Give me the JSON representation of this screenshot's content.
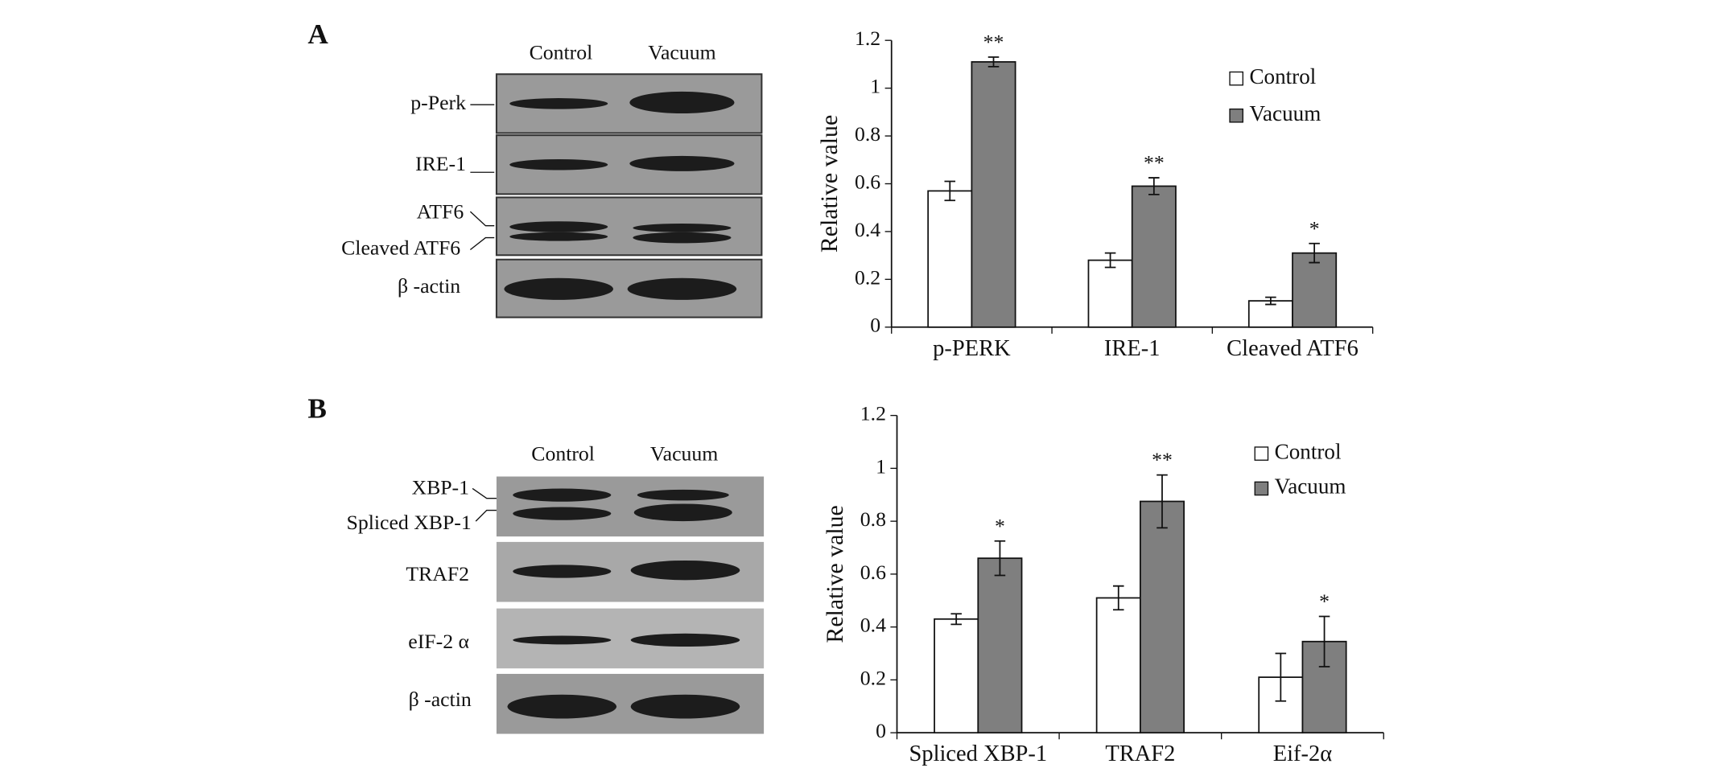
{
  "panel_labels": [
    "A",
    "B"
  ],
  "blots": [
    {
      "lanes": [
        "Control",
        "Vacuum"
      ],
      "bands": [
        "p-Perk",
        "IRE-1",
        "ATF6",
        "Cleaved ATF6",
        "β -actin"
      ]
    },
    {
      "lanes": [
        "Control",
        "Vacuum"
      ],
      "bands": [
        "XBP-1",
        "Spliced XBP-1",
        "TRAF2",
        "eIF-2 α",
        "β -actin"
      ]
    }
  ],
  "chart_data": [
    {
      "type": "bar",
      "y_label": "Relative value",
      "categories": [
        "p-PERK",
        "IRE-1",
        "Cleaved ATF6"
      ],
      "series": [
        {
          "name": "Control",
          "color": "#ffffff",
          "values": [
            0.57,
            0.28,
            0.11
          ],
          "errors": [
            0.04,
            0.03,
            0.015
          ]
        },
        {
          "name": "Vacuum",
          "color": "#7f7f7f",
          "values": [
            1.11,
            0.59,
            0.31
          ],
          "errors": [
            0.02,
            0.035,
            0.04
          ]
        }
      ],
      "annotations": [
        "**",
        "**",
        "*"
      ],
      "ylim": [
        0,
        1.2
      ],
      "yticks": [
        0,
        0.2,
        0.4,
        0.6,
        0.8,
        1,
        1.2
      ],
      "grid": false,
      "legend": "top-right"
    },
    {
      "type": "bar",
      "y_label": "Relative value",
      "categories": [
        "Spliced XBP-1",
        "TRAF2",
        "Eif-2α"
      ],
      "series": [
        {
          "name": "Control",
          "color": "#ffffff",
          "values": [
            0.43,
            0.51,
            0.21
          ],
          "errors": [
            0.02,
            0.045,
            0.09
          ]
        },
        {
          "name": "Vacuum",
          "color": "#7f7f7f",
          "values": [
            0.66,
            0.875,
            0.345
          ],
          "errors": [
            0.065,
            0.1,
            0.095
          ]
        }
      ],
      "annotations": [
        "*",
        "**",
        "*"
      ],
      "ylim": [
        0,
        1.2
      ],
      "yticks": [
        0,
        0.2,
        0.4,
        0.6,
        0.8,
        1,
        1.2
      ],
      "grid": false,
      "legend": "top-right"
    }
  ]
}
